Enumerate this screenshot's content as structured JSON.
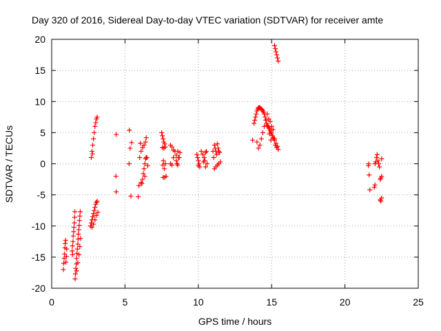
{
  "chart_data": {
    "type": "scatter",
    "title": "Day 320 of 2016, Sidereal Day-to-day VTEC variation (SDTVAR) for receiver amte",
    "xlabel": "GPS time / hours",
    "ylabel": "SDTVAR / TECUs",
    "xlim": [
      0,
      25
    ],
    "ylim": [
      -20,
      20
    ],
    "xticks": [
      0,
      5,
      10,
      15,
      20,
      25
    ],
    "yticks": [
      -20,
      -15,
      -10,
      -5,
      0,
      5,
      10,
      15,
      20
    ],
    "xtick_labels": [
      "0",
      "5",
      "10",
      "15",
      "20",
      "25"
    ],
    "ytick_labels": [
      "-20",
      "-15",
      "-10",
      "-5",
      "0",
      "5",
      "10",
      "15",
      "20"
    ],
    "grid": true,
    "legend": "none",
    "marker": "+",
    "color": "#ff0000",
    "series": [
      {
        "points": [
          [
            0.8,
            -17.0
          ],
          [
            0.82,
            -16.0
          ],
          [
            0.85,
            -15.2
          ],
          [
            0.88,
            -14.5
          ],
          [
            0.9,
            -13.5
          ],
          [
            0.92,
            -12.8
          ],
          [
            0.95,
            -12.3
          ],
          [
            0.97,
            -15.8
          ],
          [
            1.0,
            -14.9
          ],
          [
            1.02,
            -13.7
          ],
          [
            1.4,
            -14.0
          ],
          [
            1.42,
            -13.2
          ],
          [
            1.45,
            -12.5
          ],
          [
            1.47,
            -11.6
          ],
          [
            1.5,
            -10.9
          ],
          [
            1.52,
            -10.2
          ],
          [
            1.55,
            -9.5
          ],
          [
            1.57,
            -8.6
          ],
          [
            1.58,
            -7.7
          ],
          [
            1.43,
            -14.6
          ],
          [
            1.6,
            -18.5
          ],
          [
            1.62,
            -17.7
          ],
          [
            1.65,
            -16.8
          ],
          [
            1.68,
            -16.1
          ],
          [
            1.7,
            -15.2
          ],
          [
            1.72,
            -14.4
          ],
          [
            1.75,
            -13.7
          ],
          [
            1.78,
            -12.9
          ],
          [
            1.8,
            -12.1
          ],
          [
            1.82,
            -11.3
          ],
          [
            1.85,
            -10.6
          ],
          [
            1.88,
            -9.9
          ],
          [
            1.9,
            -9.1
          ],
          [
            1.92,
            -8.4
          ],
          [
            1.95,
            -7.7
          ],
          [
            1.7,
            -17.2
          ],
          [
            1.78,
            -15.9
          ],
          [
            1.86,
            -14.6
          ],
          [
            1.92,
            -13.3
          ],
          [
            1.97,
            -12.0
          ],
          [
            2.7,
            1.0
          ],
          [
            2.75,
            2.0
          ],
          [
            2.8,
            3.0
          ],
          [
            2.85,
            4.0
          ],
          [
            2.9,
            5.0
          ],
          [
            2.95,
            6.0
          ],
          [
            3.0,
            6.6
          ],
          [
            3.05,
            7.2
          ],
          [
            3.1,
            7.5
          ],
          [
            2.78,
            1.6
          ],
          [
            2.65,
            -10.0
          ],
          [
            2.7,
            -9.5
          ],
          [
            2.75,
            -9.0
          ],
          [
            2.8,
            -8.5
          ],
          [
            2.85,
            -8.0
          ],
          [
            2.9,
            -7.5
          ],
          [
            2.95,
            -7.0
          ],
          [
            3.0,
            -6.5
          ],
          [
            3.05,
            -6.2
          ],
          [
            3.1,
            -6.0
          ],
          [
            2.75,
            -10.2
          ],
          [
            2.85,
            -9.7
          ],
          [
            2.95,
            -9.0
          ],
          [
            3.05,
            -8.3
          ],
          [
            3.15,
            -7.8
          ],
          [
            4.4,
            4.7
          ],
          [
            4.38,
            -2.0
          ],
          [
            4.4,
            -4.5
          ],
          [
            5.3,
            5.4
          ],
          [
            5.35,
            2.5
          ],
          [
            5.4,
            -5.2
          ],
          [
            5.28,
            0.0
          ],
          [
            5.45,
            3.4
          ],
          [
            5.9,
            -5.3
          ],
          [
            5.95,
            -3.5
          ],
          [
            6.05,
            3.3
          ],
          [
            6.15,
            -3.2
          ],
          [
            6.2,
            -2.5
          ],
          [
            6.25,
            -1.6
          ],
          [
            6.3,
            -0.8
          ],
          [
            6.35,
            0.0
          ],
          [
            6.4,
            0.8
          ],
          [
            6.45,
            1.0
          ],
          [
            6.0,
            1.0
          ],
          [
            6.1,
            -3.0
          ],
          [
            6.2,
            2.6
          ],
          [
            6.3,
            3.0
          ],
          [
            6.4,
            3.5
          ],
          [
            6.45,
            4.2
          ],
          [
            6.5,
            1.0
          ],
          [
            6.55,
            -0.3
          ],
          [
            6.1,
            2.0
          ],
          [
            6.35,
            -2.0
          ],
          [
            7.5,
            5.0
          ],
          [
            7.55,
            4.5
          ],
          [
            7.6,
            4.0
          ],
          [
            7.65,
            3.5
          ],
          [
            7.7,
            3.2
          ],
          [
            7.55,
            2.6
          ],
          [
            7.65,
            2.5
          ],
          [
            7.75,
            2.7
          ],
          [
            7.6,
            -2.2
          ],
          [
            7.7,
            -2.2
          ],
          [
            7.58,
            -0.2
          ],
          [
            7.62,
            0.5
          ],
          [
            7.68,
            -0.8
          ],
          [
            7.75,
            0.0
          ],
          [
            7.8,
            -2.0
          ],
          [
            8.1,
            3.0
          ],
          [
            8.2,
            2.7
          ],
          [
            8.3,
            2.2
          ],
          [
            8.4,
            2.0
          ],
          [
            8.5,
            0.5
          ],
          [
            8.55,
            0.0
          ],
          [
            8.6,
            -0.2
          ],
          [
            8.65,
            1.0
          ],
          [
            8.1,
            0.0
          ],
          [
            8.3,
            1.0
          ],
          [
            8.6,
            2.0
          ],
          [
            8.7,
            1.0
          ],
          [
            8.2,
            -0.2
          ],
          [
            8.5,
            1.4
          ],
          [
            8.75,
            1.8
          ],
          [
            9.9,
            1.5
          ],
          [
            9.95,
            1.0
          ],
          [
            10.0,
            0.5
          ],
          [
            10.05,
            0.0
          ],
          [
            10.1,
            -0.5
          ],
          [
            10.2,
            2.0
          ],
          [
            10.3,
            1.5
          ],
          [
            10.4,
            1.0
          ],
          [
            10.45,
            0.5
          ],
          [
            10.5,
            -0.5
          ],
          [
            10.55,
            2.0
          ],
          [
            10.6,
            0.0
          ],
          [
            10.0,
            -0.3
          ],
          [
            10.35,
            0.3
          ],
          [
            10.5,
            1.8
          ],
          [
            11.0,
            2.0
          ],
          [
            11.05,
            1.0
          ],
          [
            11.1,
            3.0
          ],
          [
            11.15,
            2.5
          ],
          [
            11.2,
            2.0
          ],
          [
            11.25,
            1.5
          ],
          [
            11.3,
            3.2
          ],
          [
            11.35,
            2.5
          ],
          [
            11.4,
            2.0
          ],
          [
            11.45,
            1.8
          ],
          [
            11.1,
            -0.8
          ],
          [
            11.2,
            -0.5
          ],
          [
            11.3,
            -0.2
          ],
          [
            11.4,
            0.0
          ],
          [
            11.5,
            0.3
          ],
          [
            13.7,
            3.8
          ],
          [
            13.8,
            6.5
          ],
          [
            13.85,
            7.0
          ],
          [
            13.9,
            7.5
          ],
          [
            13.95,
            8.0
          ],
          [
            14.0,
            8.5
          ],
          [
            14.05,
            8.8
          ],
          [
            14.1,
            9.0
          ],
          [
            14.15,
            9.0
          ],
          [
            14.2,
            9.0
          ],
          [
            14.25,
            8.9
          ],
          [
            14.3,
            8.8
          ],
          [
            14.35,
            8.7
          ],
          [
            14.4,
            8.5
          ],
          [
            14.45,
            8.3
          ],
          [
            14.5,
            8.0
          ],
          [
            14.55,
            7.5
          ],
          [
            14.6,
            7.0
          ],
          [
            14.65,
            6.5
          ],
          [
            14.7,
            6.2
          ],
          [
            14.75,
            6.0
          ],
          [
            14.8,
            5.8
          ],
          [
            14.85,
            5.6
          ],
          [
            14.9,
            5.3
          ],
          [
            14.95,
            5.0
          ],
          [
            15.0,
            4.8
          ],
          [
            15.05,
            4.5
          ],
          [
            15.1,
            4.2
          ],
          [
            15.15,
            4.0
          ],
          [
            15.2,
            3.8
          ],
          [
            14.0,
            3.5
          ],
          [
            14.1,
            2.5
          ],
          [
            14.2,
            3.0
          ],
          [
            14.3,
            4.0
          ],
          [
            14.4,
            5.0
          ],
          [
            14.5,
            6.0
          ],
          [
            14.6,
            7.0
          ],
          [
            14.7,
            8.0
          ],
          [
            14.8,
            7.2
          ],
          [
            14.9,
            6.8
          ],
          [
            15.0,
            6.0
          ],
          [
            15.1,
            5.5
          ],
          [
            15.2,
            4.0
          ],
          [
            15.3,
            3.3
          ],
          [
            15.4,
            2.8
          ],
          [
            15.45,
            2.3
          ],
          [
            15.35,
            2.6
          ],
          [
            15.25,
            3.0
          ],
          [
            14.85,
            4.8
          ],
          [
            14.95,
            3.8
          ],
          [
            15.2,
            19.0
          ],
          [
            15.25,
            18.5
          ],
          [
            15.3,
            18.0
          ],
          [
            15.35,
            17.5
          ],
          [
            15.4,
            17.0
          ],
          [
            15.45,
            16.5
          ],
          [
            21.6,
            -0.3
          ],
          [
            21.62,
            0.0
          ],
          [
            21.65,
            -1.8
          ],
          [
            21.7,
            -4.2
          ],
          [
            22.0,
            -3.8
          ],
          [
            22.05,
            -3.4
          ],
          [
            22.1,
            0.3
          ],
          [
            22.15,
            1.0
          ],
          [
            22.2,
            1.5
          ],
          [
            22.25,
            0.5
          ],
          [
            22.3,
            0.0
          ],
          [
            22.35,
            -0.5
          ],
          [
            22.4,
            -2.5
          ],
          [
            22.45,
            -2.3
          ],
          [
            22.5,
            -2.0
          ],
          [
            22.4,
            -5.8
          ],
          [
            22.45,
            -6.0
          ],
          [
            22.5,
            -5.5
          ],
          [
            22.5,
            0.8
          ],
          [
            22.05,
            0.0
          ]
        ]
      }
    ]
  }
}
